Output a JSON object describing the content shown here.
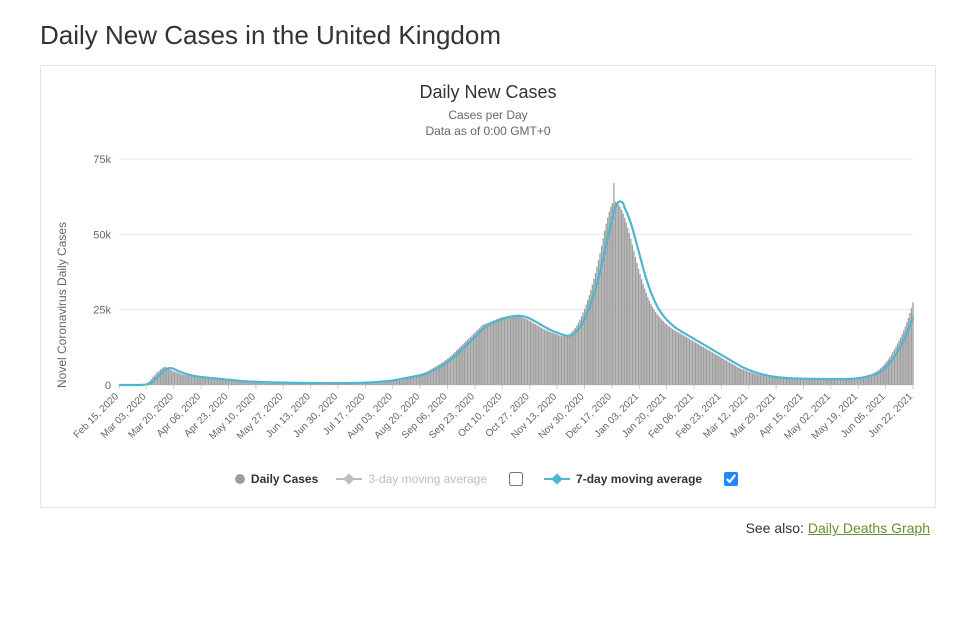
{
  "page": {
    "heading": "Daily New Cases in the United Kingdom",
    "see_also_label": "See also:",
    "see_also_link": "Daily Deaths Graph"
  },
  "chart": {
    "type": "bar+line",
    "title": "Daily New Cases",
    "subtitle_line1": "Cases per Day",
    "subtitle_line2": "Data as of 0:00 GMT+0",
    "yaxis_title": "Novel Coronavirus Daily Cases",
    "background_color": "#ffffff",
    "grid_color": "#e6e6e6",
    "bar_color": "#9e9e9e",
    "line7_color": "#4fb6cf",
    "line3_color": "#bdbdbd",
    "y": {
      "min": 0,
      "max": 75000,
      "ticks": [
        0,
        25000,
        50000,
        75000
      ],
      "tick_labels": [
        "0",
        "25k",
        "50k",
        "75k"
      ]
    },
    "x_labels": [
      "Feb 15, 2020",
      "Mar 03, 2020",
      "Mar 20, 2020",
      "Apr 06, 2020",
      "Apr 23, 2020",
      "May 10, 2020",
      "May 27, 2020",
      "Jun 13, 2020",
      "Jun 30, 2020",
      "Jul 17, 2020",
      "Aug 03, 2020",
      "Aug 20, 2020",
      "Sep 06, 2020",
      "Sep 23, 2020",
      "Oct 10, 2020",
      "Oct 27, 2020",
      "Nov 13, 2020",
      "Nov 30, 2020",
      "Dec 17, 2020",
      "Jan 03, 2021",
      "Jan 20, 2021",
      "Feb 06, 2021",
      "Feb 23, 2021",
      "Mar 12, 2021",
      "Mar 29, 2021",
      "Apr 15, 2021",
      "May 02, 2021",
      "May 19, 2021",
      "Jun 05, 2021",
      "Jun 22, 2021"
    ],
    "legend": {
      "daily": "Daily Cases",
      "ma3": "3-day moving average",
      "ma7": "7-day moving average",
      "ma3_checked": false,
      "ma7_checked": true
    },
    "daily_values": [
      0,
      0,
      0,
      0,
      0,
      0,
      0,
      0,
      0,
      0,
      0,
      0,
      0,
      50,
      80,
      120,
      200,
      350,
      600,
      900,
      1400,
      2000,
      2700,
      3200,
      3800,
      4300,
      4700,
      5200,
      5600,
      5900,
      6100,
      5800,
      5500,
      5200,
      4900,
      4700,
      4500,
      4300,
      4100,
      3900,
      3700,
      3500,
      3400,
      3300,
      3200,
      3100,
      3000,
      2900,
      2800,
      2700,
      2650,
      2600,
      2550,
      2500,
      2450,
      2400,
      2350,
      2300,
      2250,
      2200,
      2150,
      2100,
      2050,
      2000,
      1950,
      1900,
      1850,
      1800,
      1750,
      1700,
      1650,
      1600,
      1550,
      1500,
      1450,
      1400,
      1350,
      1300,
      1250,
      1200,
      1180,
      1160,
      1140,
      1120,
      1100,
      1080,
      1060,
      1040,
      1020,
      1000,
      980,
      960,
      940,
      920,
      900,
      880,
      870,
      860,
      850,
      840,
      830,
      820,
      810,
      800,
      790,
      780,
      770,
      760,
      750,
      740,
      730,
      720,
      715,
      710,
      705,
      700,
      695,
      690,
      685,
      680,
      675,
      670,
      665,
      660,
      655,
      650,
      648,
      646,
      644,
      642,
      640,
      638,
      636,
      634,
      632,
      630,
      628,
      626,
      624,
      622,
      620,
      622,
      624,
      626,
      628,
      630,
      635,
      640,
      650,
      660,
      670,
      680,
      690,
      700,
      720,
      740,
      760,
      780,
      800,
      820,
      840,
      870,
      900,
      930,
      960,
      1000,
      1050,
      1100,
      1150,
      1200,
      1250,
      1300,
      1350,
      1400,
      1450,
      1500,
      1600,
      1700,
      1800,
      1900,
      2000,
      2100,
      2200,
      2300,
      2400,
      2500,
      2600,
      2700,
      2800,
      2900,
      3000,
      3100,
      3200,
      3300,
      3400,
      3500,
      3700,
      3900,
      4100,
      4300,
      4500,
      4800,
      5100,
      5400,
      5700,
      6000,
      6300,
      6600,
      6900,
      7200,
      7500,
      7900,
      8300,
      8700,
      9100,
      9500,
      10000,
      10500,
      11000,
      11500,
      12000,
      12500,
      13000,
      13500,
      14000,
      14500,
      15000,
      15500,
      16000,
      16500,
      17000,
      17500,
      18000,
      18500,
      19000,
      19500,
      20000,
      20200,
      20400,
      20600,
      20800,
      21000,
      21200,
      21400,
      21600,
      21800,
      22000,
      22200,
      22400,
      22500,
      22600,
      22700,
      22800,
      22900,
      23000,
      23000,
      23000,
      23000,
      23000,
      23000,
      22800,
      22600,
      22400,
      22200,
      22000,
      21700,
      21400,
      21100,
      20800,
      20500,
      20200,
      19900,
      19600,
      19300,
      19000,
      18700,
      18400,
      18200,
      18000,
      17800,
      17600,
      17400,
      17200,
      17000,
      16800,
      16600,
      16400,
      16300,
      16200,
      16200,
      16300,
      16500,
      16800,
      17200,
      17700,
      18300,
      19000,
      19800,
      20700,
      21700,
      22800,
      24000,
      25300,
      26700,
      28200,
      29800,
      31500,
      33300,
      35200,
      37200,
      39300,
      41500,
      43800,
      46200,
      48700,
      51200,
      53500,
      55600,
      57500,
      59100,
      60300,
      67000,
      60800,
      60500,
      59900,
      59100,
      58100,
      56900,
      55500,
      53900,
      52200,
      50400,
      48500,
      46500,
      44500,
      42500,
      40500,
      38600,
      36800,
      35100,
      33500,
      32000,
      30600,
      29300,
      28100,
      27000,
      26000,
      25100,
      24300,
      23600,
      22900,
      22300,
      21700,
      21200,
      20700,
      20200,
      19800,
      19400,
      19000,
      18600,
      18300,
      18000,
      17700,
      17400,
      17100,
      16800,
      16500,
      16200,
      15900,
      15600,
      15300,
      15000,
      14700,
      14400,
      14100,
      13800,
      13500,
      13200,
      12900,
      12600,
      12300,
      12000,
      11700,
      11400,
      11100,
      10800,
      10500,
      10200,
      9900,
      9600,
      9300,
      9000,
      8700,
      8400,
      8100,
      7800,
      7500,
      7200,
      6900,
      6600,
      6300,
      6000,
      5700,
      5500,
      5300,
      5100,
      4900,
      4700,
      4500,
      4300,
      4150,
      4000,
      3850,
      3700,
      3550,
      3400,
      3300,
      3200,
      3100,
      3000,
      2900,
      2800,
      2700,
      2650,
      2600,
      2550,
      2500,
      2450,
      2400,
      2350,
      2300,
      2280,
      2260,
      2240,
      2220,
      2200,
      2180,
      2160,
      2140,
      2120,
      2100,
      2090,
      2080,
      2070,
      2060,
      2050,
      2040,
      2030,
      2020,
      2010,
      2000,
      1995,
      1990,
      1985,
      1980,
      1975,
      1970,
      1965,
      1960,
      1955,
      1950,
      1948,
      1946,
      1944,
      1942,
      1940,
      1945,
      1950,
      1960,
      1975,
      1995,
      2020,
      2050,
      2085,
      2125,
      2170,
      2220,
      2280,
      2350,
      2430,
      2520,
      2620,
      2730,
      2850,
      2980,
      3120,
      3270,
      3430,
      3600,
      3800,
      4050,
      4350,
      4700,
      5100,
      5550,
      6050,
      6600,
      7200,
      7850,
      8550,
      9300,
      10100,
      10950,
      11850,
      12800,
      13800,
      14800,
      15800,
      16900,
      18100,
      19400,
      20800,
      22300,
      23900,
      25600,
      27400
    ]
  }
}
